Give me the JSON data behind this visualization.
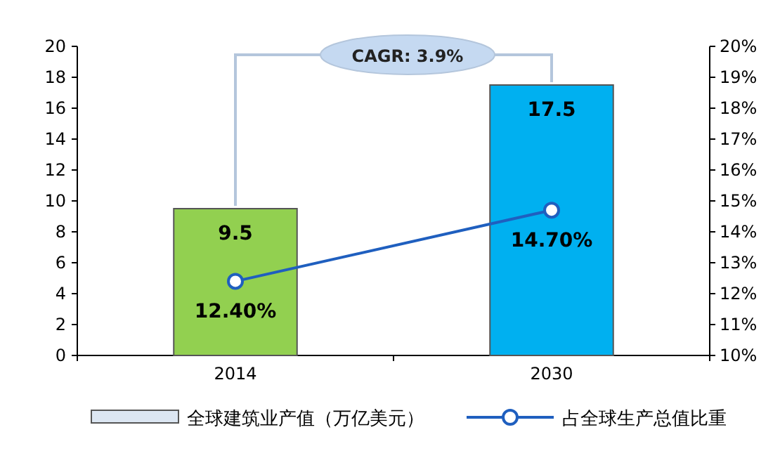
{
  "chart_data": {
    "type": "bar",
    "categories": [
      "2014",
      "2030"
    ],
    "series": [
      {
        "name": "全球建筑业产值（万亿美元）",
        "color": "#dce6f2",
        "colors": [
          "#92d050",
          "#00b0f0"
        ],
        "values": [
          9.5,
          17.5
        ],
        "value_labels": [
          "9.5",
          "17.5"
        ]
      },
      {
        "name": "占全球生产总值比重",
        "type": "line",
        "axis": "y2",
        "color": "#1f5fbf",
        "values": [
          12.4,
          14.7
        ],
        "value_labels": [
          "12.40%",
          "14.70%"
        ]
      }
    ],
    "ylim": [
      0,
      20
    ],
    "yticks": [
      0,
      2,
      4,
      6,
      8,
      10,
      12,
      14,
      16,
      18,
      20
    ],
    "y2lim": [
      10,
      20
    ],
    "y2ticks": [
      {
        "value": 10,
        "label": "10%"
      },
      {
        "value": 11,
        "label": "11%"
      },
      {
        "value": 12,
        "label": "12%"
      },
      {
        "value": 13,
        "label": "13%"
      },
      {
        "value": 14,
        "label": "14%"
      },
      {
        "value": 15,
        "label": "15%"
      },
      {
        "value": 16,
        "label": "16%"
      },
      {
        "value": 17,
        "label": "17%"
      },
      {
        "value": 18,
        "label": "18%"
      },
      {
        "value": 19,
        "label": "19%"
      },
      {
        "value": 20,
        "label": "20%"
      }
    ],
    "annotations": [
      "CAGR: 3.9%"
    ],
    "marker": "circle",
    "legend": "bottom",
    "grid": false
  }
}
